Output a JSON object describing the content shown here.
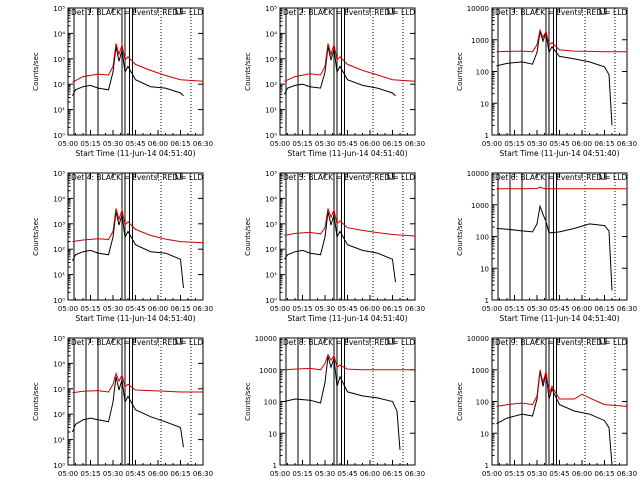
{
  "common": {
    "xlabel": "Start Time (11-Jun-14 04:51:40)",
    "ylabel": "Counts/sec",
    "x_ticks": [
      "05:00",
      "05:15",
      "05:30",
      "05:45",
      "06:00",
      "06:15",
      "06:30"
    ],
    "x_range_minutes": [
      "05:00",
      "06:30"
    ],
    "solid_vertical_lines": [
      "05:04",
      "05:12",
      "05:20",
      "05:36",
      "05:38",
      "05:41",
      "05:43"
    ],
    "dotted_vertical_lines": [
      "06:02",
      "06:22"
    ],
    "colors": {
      "events": "#000000",
      "lld": "#cc0000",
      "axes": "#000000"
    }
  },
  "chart_data": [
    {
      "type": "line",
      "title": "Det 1: BLACK = Events, RED = LLD",
      "yscale": "log",
      "ylim": [
        1,
        100000
      ],
      "y_tick_labels": [
        "10⁰",
        "10¹",
        "10²",
        "10³",
        "10⁴",
        "10⁵"
      ],
      "series": [
        {
          "name": "Events",
          "x": [
            "05:03",
            "05:05",
            "05:10",
            "05:15",
            "05:20",
            "05:27",
            "05:30",
            "05:32",
            "05:34",
            "05:36",
            "05:38",
            "05:40",
            "05:45",
            "05:55",
            "06:05",
            "06:15",
            "06:17"
          ],
          "y": [
            35,
            60,
            80,
            90,
            70,
            60,
            300,
            3000,
            800,
            2200,
            300,
            500,
            150,
            80,
            70,
            45,
            35
          ]
        },
        {
          "name": "LLD",
          "x": [
            "05:03",
            "05:10",
            "05:20",
            "05:27",
            "05:30",
            "05:32",
            "05:34",
            "05:36",
            "05:38",
            "05:40",
            "05:45",
            "05:55",
            "06:05",
            "06:15",
            "06:30"
          ],
          "y": [
            120,
            200,
            250,
            230,
            500,
            4000,
            1500,
            3500,
            900,
            1200,
            600,
            350,
            220,
            150,
            130
          ]
        }
      ]
    },
    {
      "type": "line",
      "title": "Det 2: BLACK = Events, RED = LLD",
      "yscale": "log",
      "ylim": [
        1,
        100000
      ],
      "y_tick_labels": [
        "10⁰",
        "10¹",
        "10²",
        "10³",
        "10⁴",
        "10⁵"
      ],
      "series": [
        {
          "name": "Events",
          "x": [
            "05:03",
            "05:05",
            "05:10",
            "05:15",
            "05:20",
            "05:27",
            "05:30",
            "05:32",
            "05:34",
            "05:36",
            "05:38",
            "05:40",
            "05:45",
            "05:55",
            "06:05",
            "06:15",
            "06:17"
          ],
          "y": [
            40,
            70,
            90,
            100,
            80,
            70,
            300,
            3000,
            900,
            2400,
            300,
            500,
            150,
            90,
            70,
            45,
            35
          ]
        },
        {
          "name": "LLD",
          "x": [
            "05:03",
            "05:10",
            "05:20",
            "05:27",
            "05:30",
            "05:32",
            "05:34",
            "05:36",
            "05:38",
            "05:40",
            "05:45",
            "05:55",
            "06:05",
            "06:15",
            "06:30"
          ],
          "y": [
            130,
            200,
            260,
            230,
            500,
            4000,
            1500,
            3600,
            900,
            1200,
            600,
            350,
            230,
            150,
            130
          ]
        }
      ]
    },
    {
      "type": "line",
      "title": "Det 3: BLACK = Events, RED = LLD",
      "yscale": "log",
      "ylim": [
        1,
        10000
      ],
      "y_tick_labels": [
        "1",
        "10",
        "100",
        "1000",
        "10000"
      ],
      "series": [
        {
          "name": "Events",
          "x": [
            "05:03",
            "05:10",
            "05:20",
            "05:27",
            "05:30",
            "05:32",
            "05:34",
            "05:36",
            "05:38",
            "05:40",
            "05:45",
            "05:55",
            "06:05",
            "06:15",
            "06:18",
            "06:20"
          ],
          "y": [
            150,
            180,
            200,
            170,
            400,
            1800,
            900,
            1700,
            400,
            600,
            300,
            250,
            200,
            140,
            80,
            2
          ]
        },
        {
          "name": "LLD",
          "x": [
            "05:03",
            "05:10",
            "05:20",
            "05:27",
            "05:30",
            "05:32",
            "05:34",
            "05:36",
            "05:38",
            "05:40",
            "05:45",
            "05:55",
            "06:05",
            "06:15",
            "06:30"
          ],
          "y": [
            420,
            430,
            440,
            420,
            700,
            2000,
            1200,
            1800,
            700,
            800,
            480,
            440,
            430,
            420,
            420
          ]
        }
      ]
    },
    {
      "type": "line",
      "title": "Det 4: BLACK = Events, RED = LLD",
      "yscale": "log",
      "ylim": [
        1,
        100000
      ],
      "y_tick_labels": [
        "10⁰",
        "10¹",
        "10²",
        "10³",
        "10⁴",
        "10⁵"
      ],
      "series": [
        {
          "name": "Events",
          "x": [
            "05:03",
            "05:05",
            "05:10",
            "05:15",
            "05:20",
            "05:27",
            "05:30",
            "05:32",
            "05:34",
            "05:36",
            "05:38",
            "05:40",
            "05:45",
            "05:55",
            "06:05",
            "06:15",
            "06:17"
          ],
          "y": [
            35,
            60,
            80,
            90,
            70,
            60,
            300,
            3000,
            900,
            2300,
            300,
            500,
            150,
            80,
            70,
            40,
            3
          ]
        },
        {
          "name": "LLD",
          "x": [
            "05:03",
            "05:10",
            "05:20",
            "05:27",
            "05:30",
            "05:32",
            "05:34",
            "05:36",
            "05:38",
            "05:40",
            "05:45",
            "05:55",
            "06:05",
            "06:15",
            "06:30"
          ],
          "y": [
            200,
            230,
            260,
            240,
            500,
            4000,
            1500,
            3500,
            900,
            1200,
            600,
            350,
            250,
            200,
            180
          ]
        }
      ]
    },
    {
      "type": "line",
      "title": "Det 5: BLACK = Events, RED = LLD",
      "yscale": "log",
      "ylim": [
        1,
        100000
      ],
      "y_tick_labels": [
        "10⁰",
        "10¹",
        "10²",
        "10³",
        "10⁴",
        "10⁵"
      ],
      "series": [
        {
          "name": "Events",
          "x": [
            "05:03",
            "05:05",
            "05:10",
            "05:15",
            "05:20",
            "05:27",
            "05:30",
            "05:32",
            "05:34",
            "05:36",
            "05:38",
            "05:40",
            "05:45",
            "05:55",
            "06:05",
            "06:15",
            "06:17"
          ],
          "y": [
            40,
            60,
            80,
            90,
            70,
            60,
            300,
            3000,
            900,
            2300,
            300,
            500,
            150,
            90,
            70,
            40,
            5
          ]
        },
        {
          "name": "LLD",
          "x": [
            "05:03",
            "05:10",
            "05:20",
            "05:27",
            "05:30",
            "05:32",
            "05:34",
            "05:36",
            "05:38",
            "05:40",
            "05:45",
            "05:55",
            "06:05",
            "06:15",
            "06:30"
          ],
          "y": [
            350,
            420,
            460,
            400,
            700,
            4000,
            1800,
            3500,
            1000,
            1300,
            700,
            550,
            450,
            380,
            330
          ]
        }
      ]
    },
    {
      "type": "line",
      "title": "Det 6: BLACK = Events, RED = LLD",
      "yscale": "log",
      "ylim": [
        1,
        10000
      ],
      "y_tick_labels": [
        "1",
        "10",
        "100",
        "1000",
        "10000"
      ],
      "series": [
        {
          "name": "Events",
          "x": [
            "05:03",
            "05:10",
            "05:20",
            "05:27",
            "05:30",
            "05:32",
            "05:34",
            "05:36",
            "05:38",
            "05:45",
            "05:55",
            "06:05",
            "06:15",
            "06:18",
            "06:20"
          ],
          "y": [
            180,
            170,
            150,
            140,
            250,
            900,
            500,
            300,
            130,
            140,
            180,
            250,
            220,
            150,
            2
          ]
        },
        {
          "name": "LLD",
          "x": [
            "05:03",
            "05:20",
            "05:30",
            "05:32",
            "05:34",
            "05:36",
            "06:30"
          ],
          "y": [
            3200,
            3200,
            3250,
            3600,
            3300,
            3200,
            3200
          ]
        }
      ]
    },
    {
      "type": "line",
      "title": "Det 7: BLACK = Events, RED = LLD",
      "yscale": "log",
      "ylim": [
        1,
        100000
      ],
      "y_tick_labels": [
        "10⁰",
        "10¹",
        "10²",
        "10³",
        "10⁴",
        "10⁵"
      ],
      "series": [
        {
          "name": "Events",
          "x": [
            "05:03",
            "05:05",
            "05:10",
            "05:15",
            "05:20",
            "05:27",
            "05:30",
            "05:32",
            "05:34",
            "05:36",
            "05:38",
            "05:40",
            "05:45",
            "05:55",
            "06:05",
            "06:15",
            "06:17"
          ],
          "y": [
            20,
            40,
            60,
            70,
            60,
            50,
            300,
            3000,
            900,
            2300,
            300,
            500,
            150,
            80,
            50,
            30,
            5
          ]
        },
        {
          "name": "LLD",
          "x": [
            "05:03",
            "05:10",
            "05:20",
            "05:27",
            "05:30",
            "05:32",
            "05:34",
            "05:36",
            "05:38",
            "05:40",
            "05:45",
            "05:55",
            "06:05",
            "06:15",
            "06:30"
          ],
          "y": [
            700,
            800,
            850,
            750,
            1500,
            4000,
            2000,
            3500,
            1200,
            1500,
            900,
            850,
            800,
            750,
            750
          ]
        }
      ]
    },
    {
      "type": "line",
      "title": "Det 8: BLACK = Events, RED = LLD",
      "yscale": "log",
      "ylim": [
        1,
        10000
      ],
      "y_tick_labels": [
        "1",
        "10",
        "100",
        "1000",
        "10000"
      ],
      "series": [
        {
          "name": "Events",
          "x": [
            "05:03",
            "05:10",
            "05:20",
            "05:27",
            "05:30",
            "05:32",
            "05:34",
            "05:36",
            "05:38",
            "05:40",
            "05:45",
            "05:55",
            "06:05",
            "06:15",
            "06:18",
            "06:20"
          ],
          "y": [
            100,
            120,
            110,
            90,
            400,
            2600,
            1200,
            2300,
            300,
            600,
            200,
            150,
            130,
            100,
            50,
            3
          ]
        },
        {
          "name": "LLD",
          "x": [
            "05:03",
            "05:10",
            "05:20",
            "05:27",
            "05:30",
            "05:32",
            "05:34",
            "05:36",
            "05:38",
            "05:40",
            "05:45",
            "05:55",
            "06:05",
            "06:15",
            "06:30"
          ],
          "y": [
            1000,
            1050,
            1100,
            1000,
            1600,
            3000,
            2000,
            2800,
            1200,
            1400,
            1050,
            1000,
            1000,
            1000,
            1000
          ]
        }
      ]
    },
    {
      "type": "line",
      "title": "Det 9: BLACK = Events, RED = LLD",
      "yscale": "log",
      "ylim": [
        1,
        10000
      ],
      "y_tick_labels": [
        "1",
        "10",
        "100",
        "1000",
        "10000"
      ],
      "series": [
        {
          "name": "Events",
          "x": [
            "05:03",
            "05:10",
            "05:20",
            "05:27",
            "05:30",
            "05:32",
            "05:34",
            "05:36",
            "05:38",
            "05:40",
            "05:45",
            "05:55",
            "06:05",
            "06:15",
            "06:18",
            "06:20"
          ],
          "y": [
            20,
            30,
            40,
            35,
            120,
            900,
            300,
            800,
            120,
            250,
            80,
            50,
            40,
            25,
            15,
            1
          ]
        },
        {
          "name": "LLD",
          "x": [
            "05:03",
            "05:10",
            "05:20",
            "05:27",
            "05:30",
            "05:32",
            "05:34",
            "05:36",
            "05:38",
            "05:40",
            "05:45",
            "05:55",
            "06:00",
            "06:05",
            "06:15",
            "06:30"
          ],
          "y": [
            70,
            80,
            90,
            80,
            150,
            1000,
            400,
            900,
            180,
            300,
            120,
            120,
            170,
            130,
            80,
            70
          ]
        }
      ]
    }
  ]
}
